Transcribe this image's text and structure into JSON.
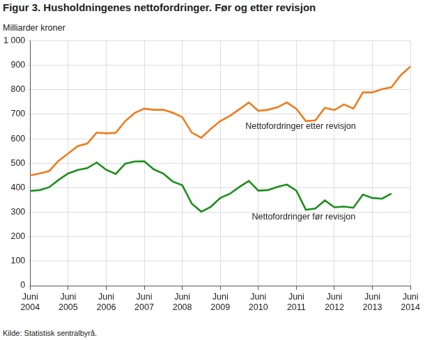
{
  "chart_data": {
    "type": "line",
    "title": "Figur 3. Husholdningenes nettofordringer. Før og etter revisjon",
    "y_label": "Milliarder kroner",
    "source": "Kilde: Statistisk sentralbyrå.",
    "categories": [
      "Juni 2004",
      null,
      null,
      null,
      "Juni 2005",
      null,
      null,
      null,
      "Juni 2006",
      null,
      null,
      null,
      "Juni 2007",
      null,
      null,
      null,
      "Juni 2008",
      null,
      null,
      null,
      "Juni 2009",
      null,
      null,
      null,
      "Juni 2010",
      null,
      null,
      null,
      "Juni 2011",
      null,
      null,
      null,
      "Juni 2012",
      null,
      null,
      null,
      "Juni 2013",
      null,
      null,
      null,
      "Juni 2014"
    ],
    "series": [
      {
        "name": "Nettofordringer etter revisjon",
        "color": "#f07c1c",
        "values": [
          450,
          458,
          468,
          510,
          540,
          570,
          580,
          625,
          622,
          624,
          672,
          705,
          723,
          718,
          718,
          706,
          688,
          625,
          604,
          640,
          672,
          693,
          720,
          748,
          714,
          718,
          728,
          748,
          722,
          672,
          675,
          726,
          717,
          740,
          723,
          789,
          789,
          802,
          810,
          860,
          895
        ]
      },
      {
        "name": "Nettofordringer før revisjon",
        "color": "#1b8e1b",
        "values": [
          387,
          390,
          402,
          432,
          458,
          472,
          480,
          503,
          473,
          456,
          498,
          507,
          508,
          475,
          458,
          425,
          410,
          335,
          302,
          322,
          358,
          375,
          403,
          428,
          388,
          390,
          403,
          413,
          388,
          310,
          315,
          348,
          320,
          323,
          318,
          372,
          358,
          355,
          376,
          null,
          null
        ]
      }
    ],
    "ylim": [
      0,
      1000
    ],
    "yticks": [
      0,
      100,
      200,
      300,
      400,
      500,
      600,
      700,
      800,
      900,
      {
        "value": 1000,
        "label": "1 000"
      }
    ],
    "grid": true
  }
}
